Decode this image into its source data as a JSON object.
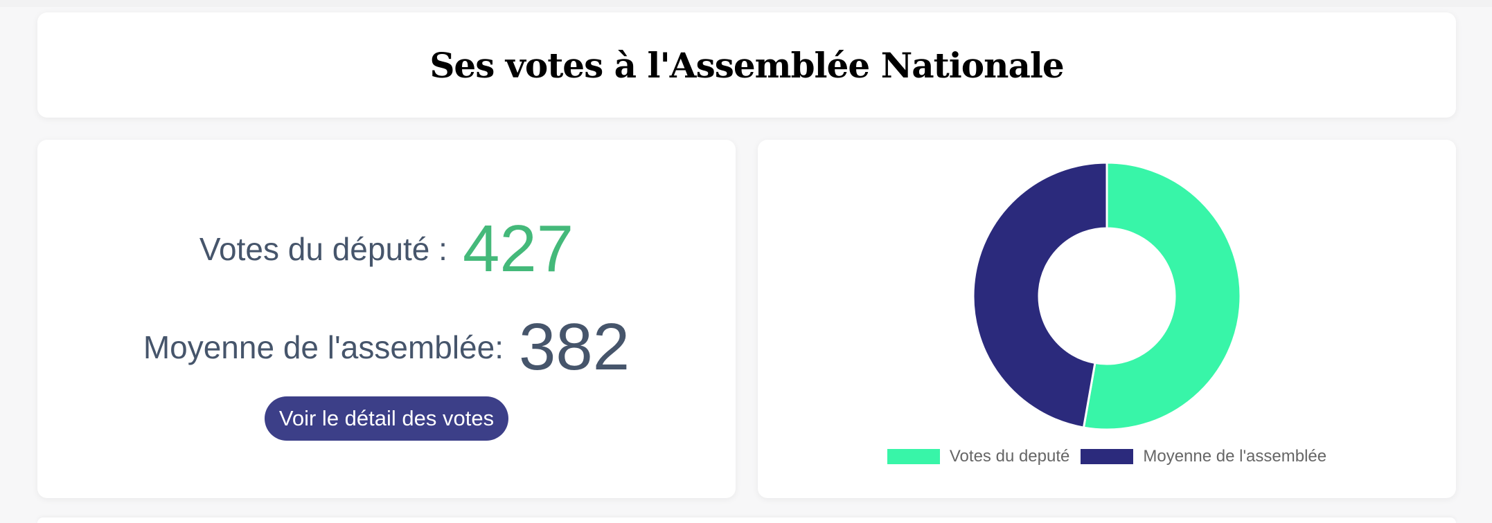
{
  "header": {
    "title": "Ses votes à l'Assemblée Nationale"
  },
  "stats": {
    "deputy_label": "Votes du député :",
    "deputy_value": "427",
    "average_label": "Moyenne de l'assemblée:",
    "average_value": "382",
    "detail_button_label": "Voir le détail des votes"
  },
  "colors": {
    "deputy_value": "#44b97a",
    "label_text": "#46556b",
    "button_bg": "#3c3f88",
    "series_deputy": "#38f5a8",
    "series_average": "#2b2a7c"
  },
  "chart_data": {
    "type": "pie",
    "variant": "doughnut",
    "legend_position": "bottom",
    "categories": [
      "Votes du deputé",
      "Moyenne de l'assemblée"
    ],
    "values": [
      427,
      382
    ],
    "colors": [
      "#38f5a8",
      "#2b2a7c"
    ],
    "title": ""
  }
}
